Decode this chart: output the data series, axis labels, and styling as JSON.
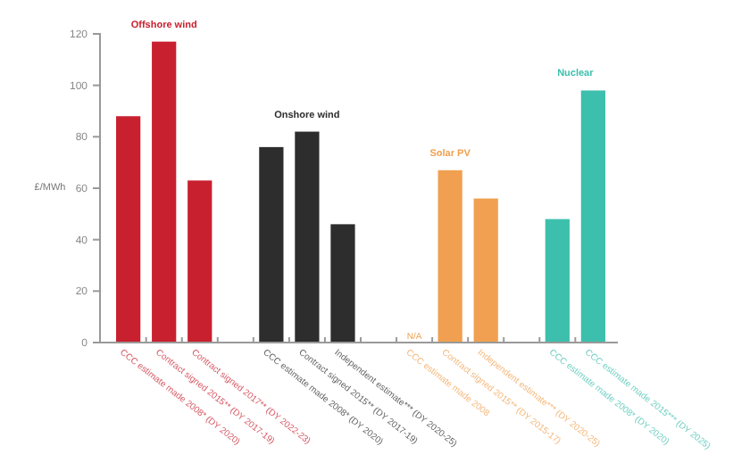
{
  "chart_data": {
    "type": "bar",
    "ylabel": "£/MWh",
    "categories": [
      "CCC estimate made 2008* (DY 2020)",
      "Contract signed 2015** (DY 2017-19)",
      "Contract signed 2017** (DY 2022-23)",
      null,
      "CCC estimate made 2008* (DY 2020)",
      "Contract signed 2015** (DY 2017-19)",
      "Independent estimate*** (DY 2020-25)",
      null,
      "CCC estimate made 2008",
      "Contract signed 2015** (DY 2015-17)",
      "Independent estimate*** (DY 2020-25)",
      null,
      "CCC estimate made 2008* (DY 2020)",
      "CCC estimate made 2015*** (DY 2025)"
    ],
    "series": [
      {
        "name": "Offshore wind",
        "color": "#c8202f",
        "values": [
          88,
          117,
          63,
          null,
          null,
          null,
          null,
          null,
          null,
          null,
          null,
          null,
          null,
          null
        ]
      },
      {
        "name": "Onshore wind",
        "color": "#2d2d2d",
        "values": [
          null,
          null,
          null,
          null,
          76,
          82,
          46,
          null,
          null,
          null,
          null,
          null,
          null,
          null
        ]
      },
      {
        "name": "Solar PV",
        "color": "#f0a050",
        "values": [
          null,
          null,
          null,
          null,
          null,
          null,
          null,
          null,
          null,
          67,
          56,
          null,
          null,
          null
        ],
        "value_labels": [
          null,
          null,
          null,
          null,
          null,
          null,
          null,
          null,
          "N/A",
          null,
          null,
          null,
          null,
          null
        ]
      },
      {
        "name": "Nuclear",
        "color": "#3dbfad",
        "values": [
          null,
          null,
          null,
          null,
          null,
          null,
          null,
          null,
          null,
          null,
          null,
          null,
          48,
          98
        ]
      }
    ],
    "ylim": [
      0,
      120
    ],
    "yticks": [
      0,
      20,
      40,
      60,
      80,
      100,
      120
    ],
    "grid": false
  }
}
